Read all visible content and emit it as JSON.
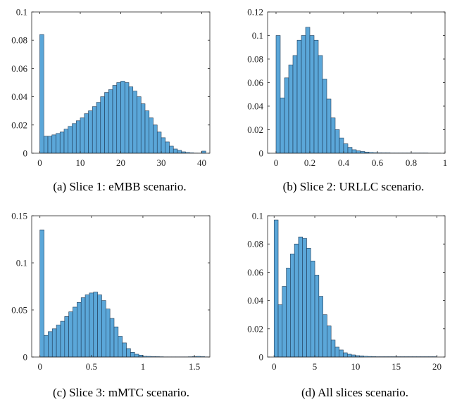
{
  "chart_data": [
    {
      "type": "bar",
      "caption": "(a) Slice 1: eMBB scenario.",
      "bar_color": "#5ba7d9",
      "xlim": [
        -2,
        42
      ],
      "ylim": [
        0,
        0.1
      ],
      "xticks": [
        0,
        10,
        20,
        30,
        40
      ],
      "xtick_labels": [
        "0",
        "10",
        "20",
        "30",
        "40"
      ],
      "yticks": [
        0,
        0.02,
        0.04,
        0.06,
        0.08,
        0.1
      ],
      "ytick_labels": [
        "0",
        "0.02",
        "0.04",
        "0.06",
        "0.08",
        "0.1"
      ],
      "bin_width": 1,
      "x": [
        0,
        1,
        2,
        3,
        4,
        5,
        6,
        7,
        8,
        9,
        10,
        11,
        12,
        13,
        14,
        15,
        16,
        17,
        18,
        19,
        20,
        21,
        22,
        23,
        24,
        25,
        26,
        27,
        28,
        29,
        30,
        31,
        32,
        33,
        34,
        35,
        36,
        37,
        38,
        39,
        40
      ],
      "values": [
        0.084,
        0.012,
        0.012,
        0.013,
        0.014,
        0.015,
        0.017,
        0.019,
        0.021,
        0.023,
        0.025,
        0.028,
        0.03,
        0.033,
        0.036,
        0.04,
        0.043,
        0.045,
        0.048,
        0.05,
        0.051,
        0.05,
        0.047,
        0.044,
        0.04,
        0.035,
        0.03,
        0.025,
        0.02,
        0.015,
        0.011,
        0.008,
        0.005,
        0.003,
        0.002,
        0.001,
        0.0007,
        0.0004,
        0.0002,
        0.0001,
        0.0015
      ]
    },
    {
      "type": "bar",
      "caption": "(b) Slice 2: URLLC scenario.",
      "bar_color": "#5ba7d9",
      "xlim": [
        -0.05,
        1.0
      ],
      "ylim": [
        0,
        0.12
      ],
      "xticks": [
        0,
        0.2,
        0.4,
        0.6,
        0.8,
        1
      ],
      "xtick_labels": [
        "0",
        "0.2",
        "0.4",
        "0.6",
        "0.8",
        "1"
      ],
      "yticks": [
        0,
        0.02,
        0.04,
        0.06,
        0.08,
        0.1,
        0.12
      ],
      "ytick_labels": [
        "0",
        "0.02",
        "0.04",
        "0.06",
        "0.08",
        "0.1",
        "0.12"
      ],
      "bin_width": 0.025,
      "x": [
        0,
        0.025,
        0.05,
        0.075,
        0.1,
        0.125,
        0.15,
        0.175,
        0.2,
        0.225,
        0.25,
        0.275,
        0.3,
        0.325,
        0.35,
        0.375,
        0.4,
        0.425,
        0.45,
        0.475,
        0.5,
        0.525,
        0.55,
        0.575,
        0.6,
        0.625,
        0.65,
        0.675,
        0.7,
        0.725,
        0.75,
        0.775,
        0.8,
        0.825,
        0.85,
        0.875,
        0.9,
        0.925,
        0.95
      ],
      "values": [
        0.1,
        0.047,
        0.064,
        0.075,
        0.083,
        0.096,
        0.1,
        0.107,
        0.1,
        0.096,
        0.083,
        0.063,
        0.046,
        0.03,
        0.02,
        0.013,
        0.008,
        0.005,
        0.003,
        0.002,
        0.0015,
        0.001,
        0.0008,
        0.0006,
        0.0005,
        0.0004,
        0.0004,
        0.0003,
        0.0003,
        0.0003,
        0.0003,
        0.0003,
        0.0003,
        0.0003,
        0.0003,
        0.0003,
        0.0002,
        0.0002,
        0.0002
      ]
    },
    {
      "type": "bar",
      "caption": "(c) Slice 3: mMTC scenario.",
      "bar_color": "#5ba7d9",
      "xlim": [
        -0.08,
        1.65
      ],
      "ylim": [
        0,
        0.15
      ],
      "xticks": [
        0,
        0.5,
        1,
        1.5
      ],
      "xtick_labels": [
        "0",
        "0.5",
        "1",
        "1.5"
      ],
      "yticks": [
        0,
        0.05,
        0.1,
        0.15
      ],
      "ytick_labels": [
        "0",
        "0.05",
        "0.1",
        "0.15"
      ],
      "bin_width": 0.04,
      "x": [
        0,
        0.04,
        0.08,
        0.12,
        0.16,
        0.2,
        0.24,
        0.28,
        0.32,
        0.36,
        0.4,
        0.44,
        0.48,
        0.52,
        0.56,
        0.6,
        0.64,
        0.68,
        0.72,
        0.76,
        0.8,
        0.84,
        0.88,
        0.92,
        0.96,
        1.0,
        1.04,
        1.08,
        1.12,
        1.16,
        1.2,
        1.24,
        1.28,
        1.32,
        1.36,
        1.4,
        1.44,
        1.48,
        1.52,
        1.56,
        1.6
      ],
      "values": [
        0.135,
        0.023,
        0.027,
        0.03,
        0.034,
        0.038,
        0.043,
        0.048,
        0.053,
        0.058,
        0.063,
        0.066,
        0.068,
        0.069,
        0.066,
        0.06,
        0.051,
        0.041,
        0.032,
        0.022,
        0.015,
        0.009,
        0.005,
        0.003,
        0.002,
        0.001,
        0.0008,
        0.0006,
        0.0005,
        0.0004,
        0.0003,
        0.0003,
        0.0003,
        0.0003,
        0.0003,
        0.0003,
        0.0004,
        0.0006,
        0.0008,
        0.0005,
        0.0003
      ]
    },
    {
      "type": "bar",
      "caption": "(d) All slices scenario.",
      "bar_color": "#5ba7d9",
      "xlim": [
        -0.8,
        21
      ],
      "ylim": [
        0,
        0.1
      ],
      "xticks": [
        0,
        5,
        10,
        15,
        20
      ],
      "xtick_labels": [
        "0",
        "5",
        "10",
        "15",
        "20"
      ],
      "yticks": [
        0,
        0.02,
        0.04,
        0.06,
        0.08,
        0.1
      ],
      "ytick_labels": [
        "0",
        "0.02",
        "0.04",
        "0.06",
        "0.08",
        "0.1"
      ],
      "bin_width": 0.5,
      "x": [
        0,
        0.5,
        1,
        1.5,
        2,
        2.5,
        3,
        3.5,
        4,
        4.5,
        5,
        5.5,
        6,
        6.5,
        7,
        7.5,
        8,
        8.5,
        9,
        9.5,
        10,
        10.5,
        11,
        11.5,
        12,
        12.5,
        13,
        13.5,
        14,
        14.5,
        15,
        15.5,
        16,
        16.5,
        17,
        17.5,
        18,
        18.5,
        19,
        19.5
      ],
      "values": [
        0.097,
        0.037,
        0.05,
        0.063,
        0.073,
        0.08,
        0.085,
        0.084,
        0.077,
        0.068,
        0.058,
        0.043,
        0.03,
        0.022,
        0.012,
        0.007,
        0.005,
        0.003,
        0.002,
        0.0015,
        0.001,
        0.0008,
        0.0006,
        0.0005,
        0.0004,
        0.0003,
        0.0003,
        0.0003,
        0.0003,
        0.0003,
        0.0003,
        0.0003,
        0.0003,
        0.0003,
        0.0003,
        0.0003,
        0.0003,
        0.0003,
        0.0003,
        0.0003
      ]
    }
  ]
}
